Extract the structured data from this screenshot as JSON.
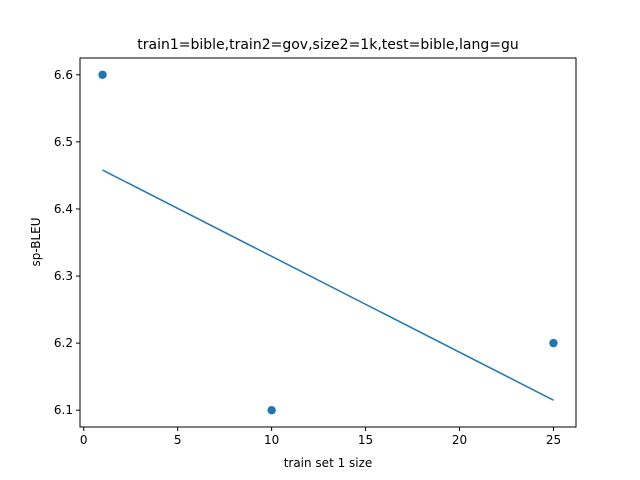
{
  "chart_data": {
    "type": "scatter",
    "title": "train1=bible,train2=gov,size2=1k,test=bible,lang=gu",
    "xlabel": "train set 1 size",
    "ylabel": "sp-BLEU",
    "xlim": [
      -0.2,
      26.2
    ],
    "ylim": [
      6.075,
      6.625
    ],
    "xticks": [
      0,
      5,
      10,
      15,
      20,
      25
    ],
    "yticks": [
      6.1,
      6.2,
      6.3,
      6.4,
      6.5,
      6.6
    ],
    "xtick_labels": [
      "0",
      "5",
      "10",
      "15",
      "20",
      "25"
    ],
    "ytick_labels": [
      "6.1",
      "6.2",
      "6.3",
      "6.4",
      "6.5",
      "6.6"
    ],
    "series": [
      {
        "type": "scatter",
        "x": [
          1,
          10,
          25
        ],
        "y": [
          6.6,
          6.1,
          6.2
        ],
        "color": "#1f77b4"
      },
      {
        "type": "line",
        "x": [
          1,
          25
        ],
        "y": [
          6.458,
          6.115
        ],
        "color": "#1f77b4"
      }
    ],
    "grid": false,
    "legend": "none"
  }
}
